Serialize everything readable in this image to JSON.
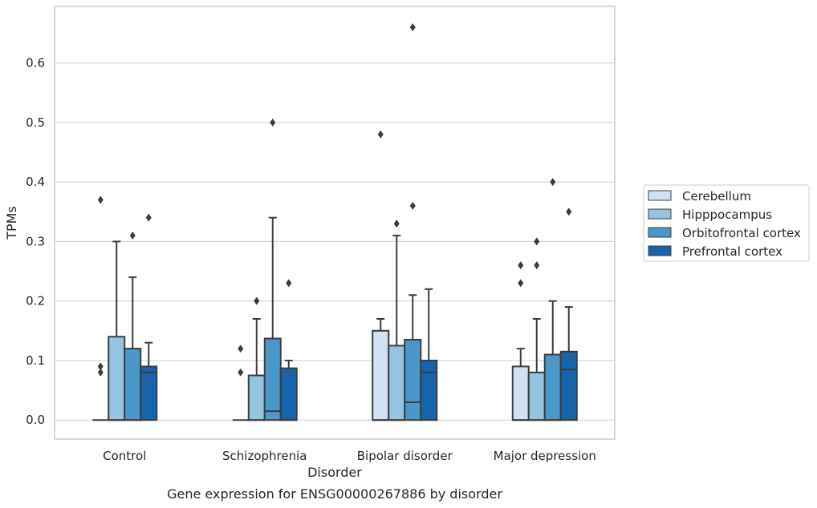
{
  "chart_data": {
    "type": "box",
    "title": "",
    "caption": "Gene expression for ENSG00000267886 by disorder",
    "xlabel": "Disorder",
    "ylabel": "TPMs",
    "ylim": [
      -0.032,
      0.695
    ],
    "yticks": [
      "0.0",
      "0.1",
      "0.2",
      "0.3",
      "0.4",
      "0.5",
      "0.6"
    ],
    "grid": "horizontal",
    "legend_position": "right",
    "categories": [
      "Control",
      "Schizophrenia",
      "Bipolar disorder",
      "Major depression"
    ],
    "series": [
      {
        "name": "Cerebellum",
        "color": "#d0e1f2",
        "boxes": [
          {
            "q1": 0.0,
            "median": 0.0,
            "q3": 0.0,
            "whisker_low": 0.0,
            "whisker_high": 0.0,
            "outliers": [
              0.37,
              0.09,
              0.08
            ]
          },
          {
            "q1": 0.0,
            "median": 0.0,
            "q3": 0.0,
            "whisker_low": 0.0,
            "whisker_high": 0.0,
            "outliers": [
              0.12,
              0.08
            ]
          },
          {
            "q1": 0.0,
            "median": 0.0,
            "q3": 0.15,
            "whisker_low": 0.0,
            "whisker_high": 0.17,
            "outliers": [
              0.48
            ]
          },
          {
            "q1": 0.0,
            "median": 0.0,
            "q3": 0.09,
            "whisker_low": 0.0,
            "whisker_high": 0.12,
            "outliers": [
              0.26,
              0.23
            ]
          }
        ]
      },
      {
        "name": "Hipppocampus",
        "color": "#94c4df",
        "boxes": [
          {
            "q1": 0.0,
            "median": 0.0,
            "q3": 0.14,
            "whisker_low": 0.0,
            "whisker_high": 0.3,
            "outliers": []
          },
          {
            "q1": 0.0,
            "median": 0.0,
            "q3": 0.075,
            "whisker_low": 0.0,
            "whisker_high": 0.17,
            "outliers": [
              0.2
            ]
          },
          {
            "q1": 0.0,
            "median": 0.0,
            "q3": 0.125,
            "whisker_low": 0.0,
            "whisker_high": 0.31,
            "outliers": [
              0.33
            ]
          },
          {
            "q1": 0.0,
            "median": 0.0,
            "q3": 0.08,
            "whisker_low": 0.0,
            "whisker_high": 0.17,
            "outliers": [
              0.3,
              0.26
            ]
          }
        ]
      },
      {
        "name": "Orbitofrontal cortex",
        "color": "#4a98c9",
        "boxes": [
          {
            "q1": 0.0,
            "median": 0.0,
            "q3": 0.12,
            "whisker_low": 0.0,
            "whisker_high": 0.24,
            "outliers": [
              0.31
            ]
          },
          {
            "q1": 0.0,
            "median": 0.015,
            "q3": 0.137,
            "whisker_low": 0.0,
            "whisker_high": 0.34,
            "outliers": [
              0.5
            ]
          },
          {
            "q1": 0.0,
            "median": 0.03,
            "q3": 0.135,
            "whisker_low": 0.0,
            "whisker_high": 0.21,
            "outliers": [
              0.66,
              0.36
            ]
          },
          {
            "q1": 0.0,
            "median": 0.0,
            "q3": 0.11,
            "whisker_low": 0.0,
            "whisker_high": 0.2,
            "outliers": [
              0.4
            ]
          }
        ]
      },
      {
        "name": "Prefrontal cortex",
        "color": "#1764ab",
        "boxes": [
          {
            "q1": 0.0,
            "median": 0.08,
            "q3": 0.09,
            "whisker_low": 0.0,
            "whisker_high": 0.13,
            "outliers": [
              0.34
            ]
          },
          {
            "q1": 0.0,
            "median": 0.0,
            "q3": 0.087,
            "whisker_low": 0.0,
            "whisker_high": 0.1,
            "outliers": [
              0.23
            ]
          },
          {
            "q1": 0.0,
            "median": 0.08,
            "q3": 0.1,
            "whisker_low": 0.0,
            "whisker_high": 0.22,
            "outliers": []
          },
          {
            "q1": 0.0,
            "median": 0.085,
            "q3": 0.115,
            "whisker_low": 0.0,
            "whisker_high": 0.19,
            "outliers": [
              0.35
            ]
          }
        ]
      }
    ]
  }
}
